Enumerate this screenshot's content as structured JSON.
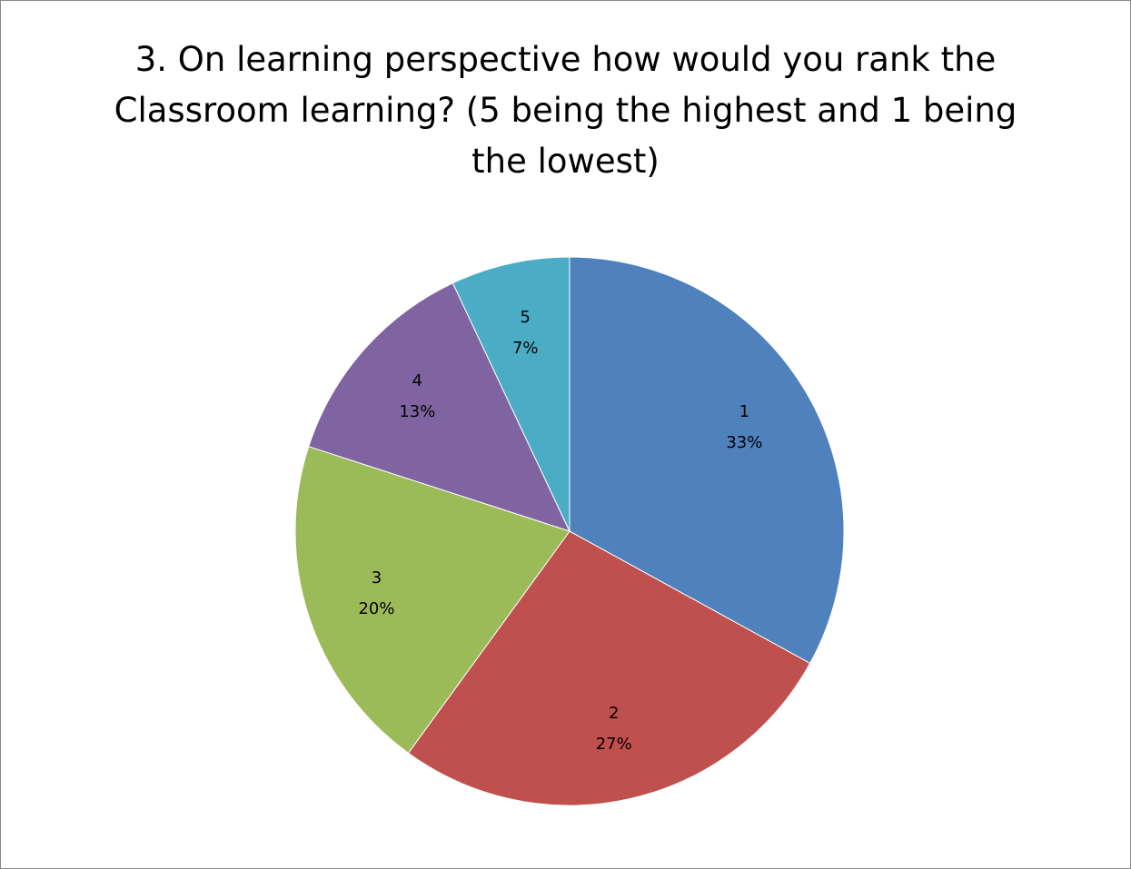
{
  "chart_data": {
    "type": "pie",
    "title": "3. On learning perspective how would you rank the Classroom learning? (5 being the highest and 1 being the lowest)",
    "categories": [
      "1",
      "2",
      "3",
      "4",
      "5"
    ],
    "values": [
      33,
      27,
      20,
      13,
      7
    ],
    "value_labels": [
      "33%",
      "27%",
      "20%",
      "13%",
      "7%"
    ],
    "colors": [
      "#4f81bd",
      "#c0504d",
      "#9bbb59",
      "#8064a2",
      "#4bacc6"
    ]
  }
}
